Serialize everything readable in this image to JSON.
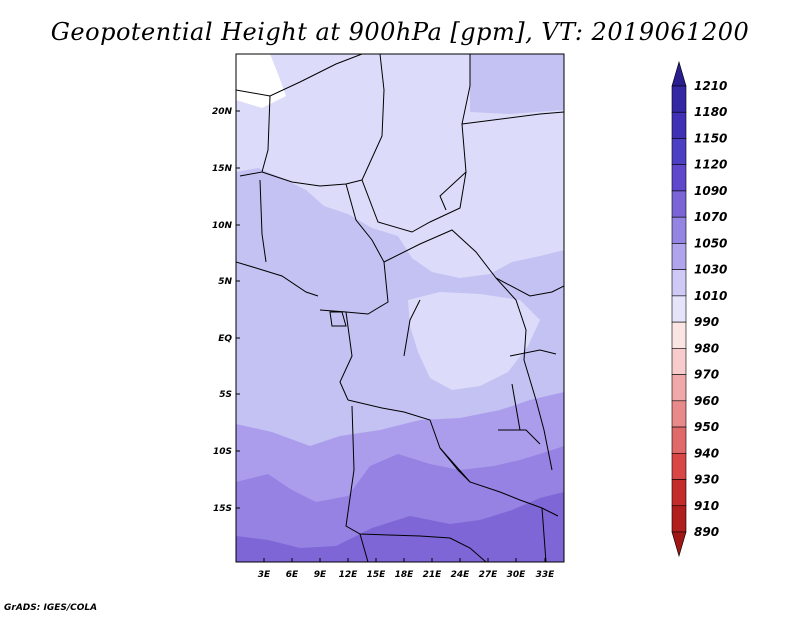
{
  "title": "Geopotential Height at 900hPa [gpm], VT: 2019061200",
  "credit": "GrADS: IGES/COLA",
  "colors": {
    "c1010": "#dcdcfa",
    "c1030": "#c4c2f2",
    "c1050": "#ab9dec",
    "c1070": "#9682e2",
    "c1090": "#7e66d6",
    "border": "#000000"
  },
  "map": {
    "lat_labels": [
      "20N",
      "15N",
      "10N",
      "5N",
      "EQ",
      "5S",
      "10S",
      "15S"
    ],
    "lon_labels": [
      "3E",
      "6E",
      "9E",
      "12E",
      "15E",
      "18E",
      "21E",
      "24E",
      "27E",
      "30E",
      "33E"
    ]
  },
  "legend": {
    "labels": [
      "1210",
      "1180",
      "1150",
      "1120",
      "1090",
      "1070",
      "1050",
      "1030",
      "1010",
      "990",
      "980",
      "970",
      "960",
      "950",
      "940",
      "930",
      "910",
      "890"
    ],
    "colors": [
      "#2a1d8f",
      "#3526a4",
      "#4030b6",
      "#4d3fc4",
      "#6048cc",
      "#7a64d6",
      "#9585e2",
      "#b0a4ec",
      "#cfc9f6",
      "#e6e4fb",
      "#fbe4e4",
      "#f8cccc",
      "#f1a8a8",
      "#e98a8a",
      "#e06a6a",
      "#d84646",
      "#c42c2c",
      "#b01e1e",
      "#a01515"
    ]
  }
}
